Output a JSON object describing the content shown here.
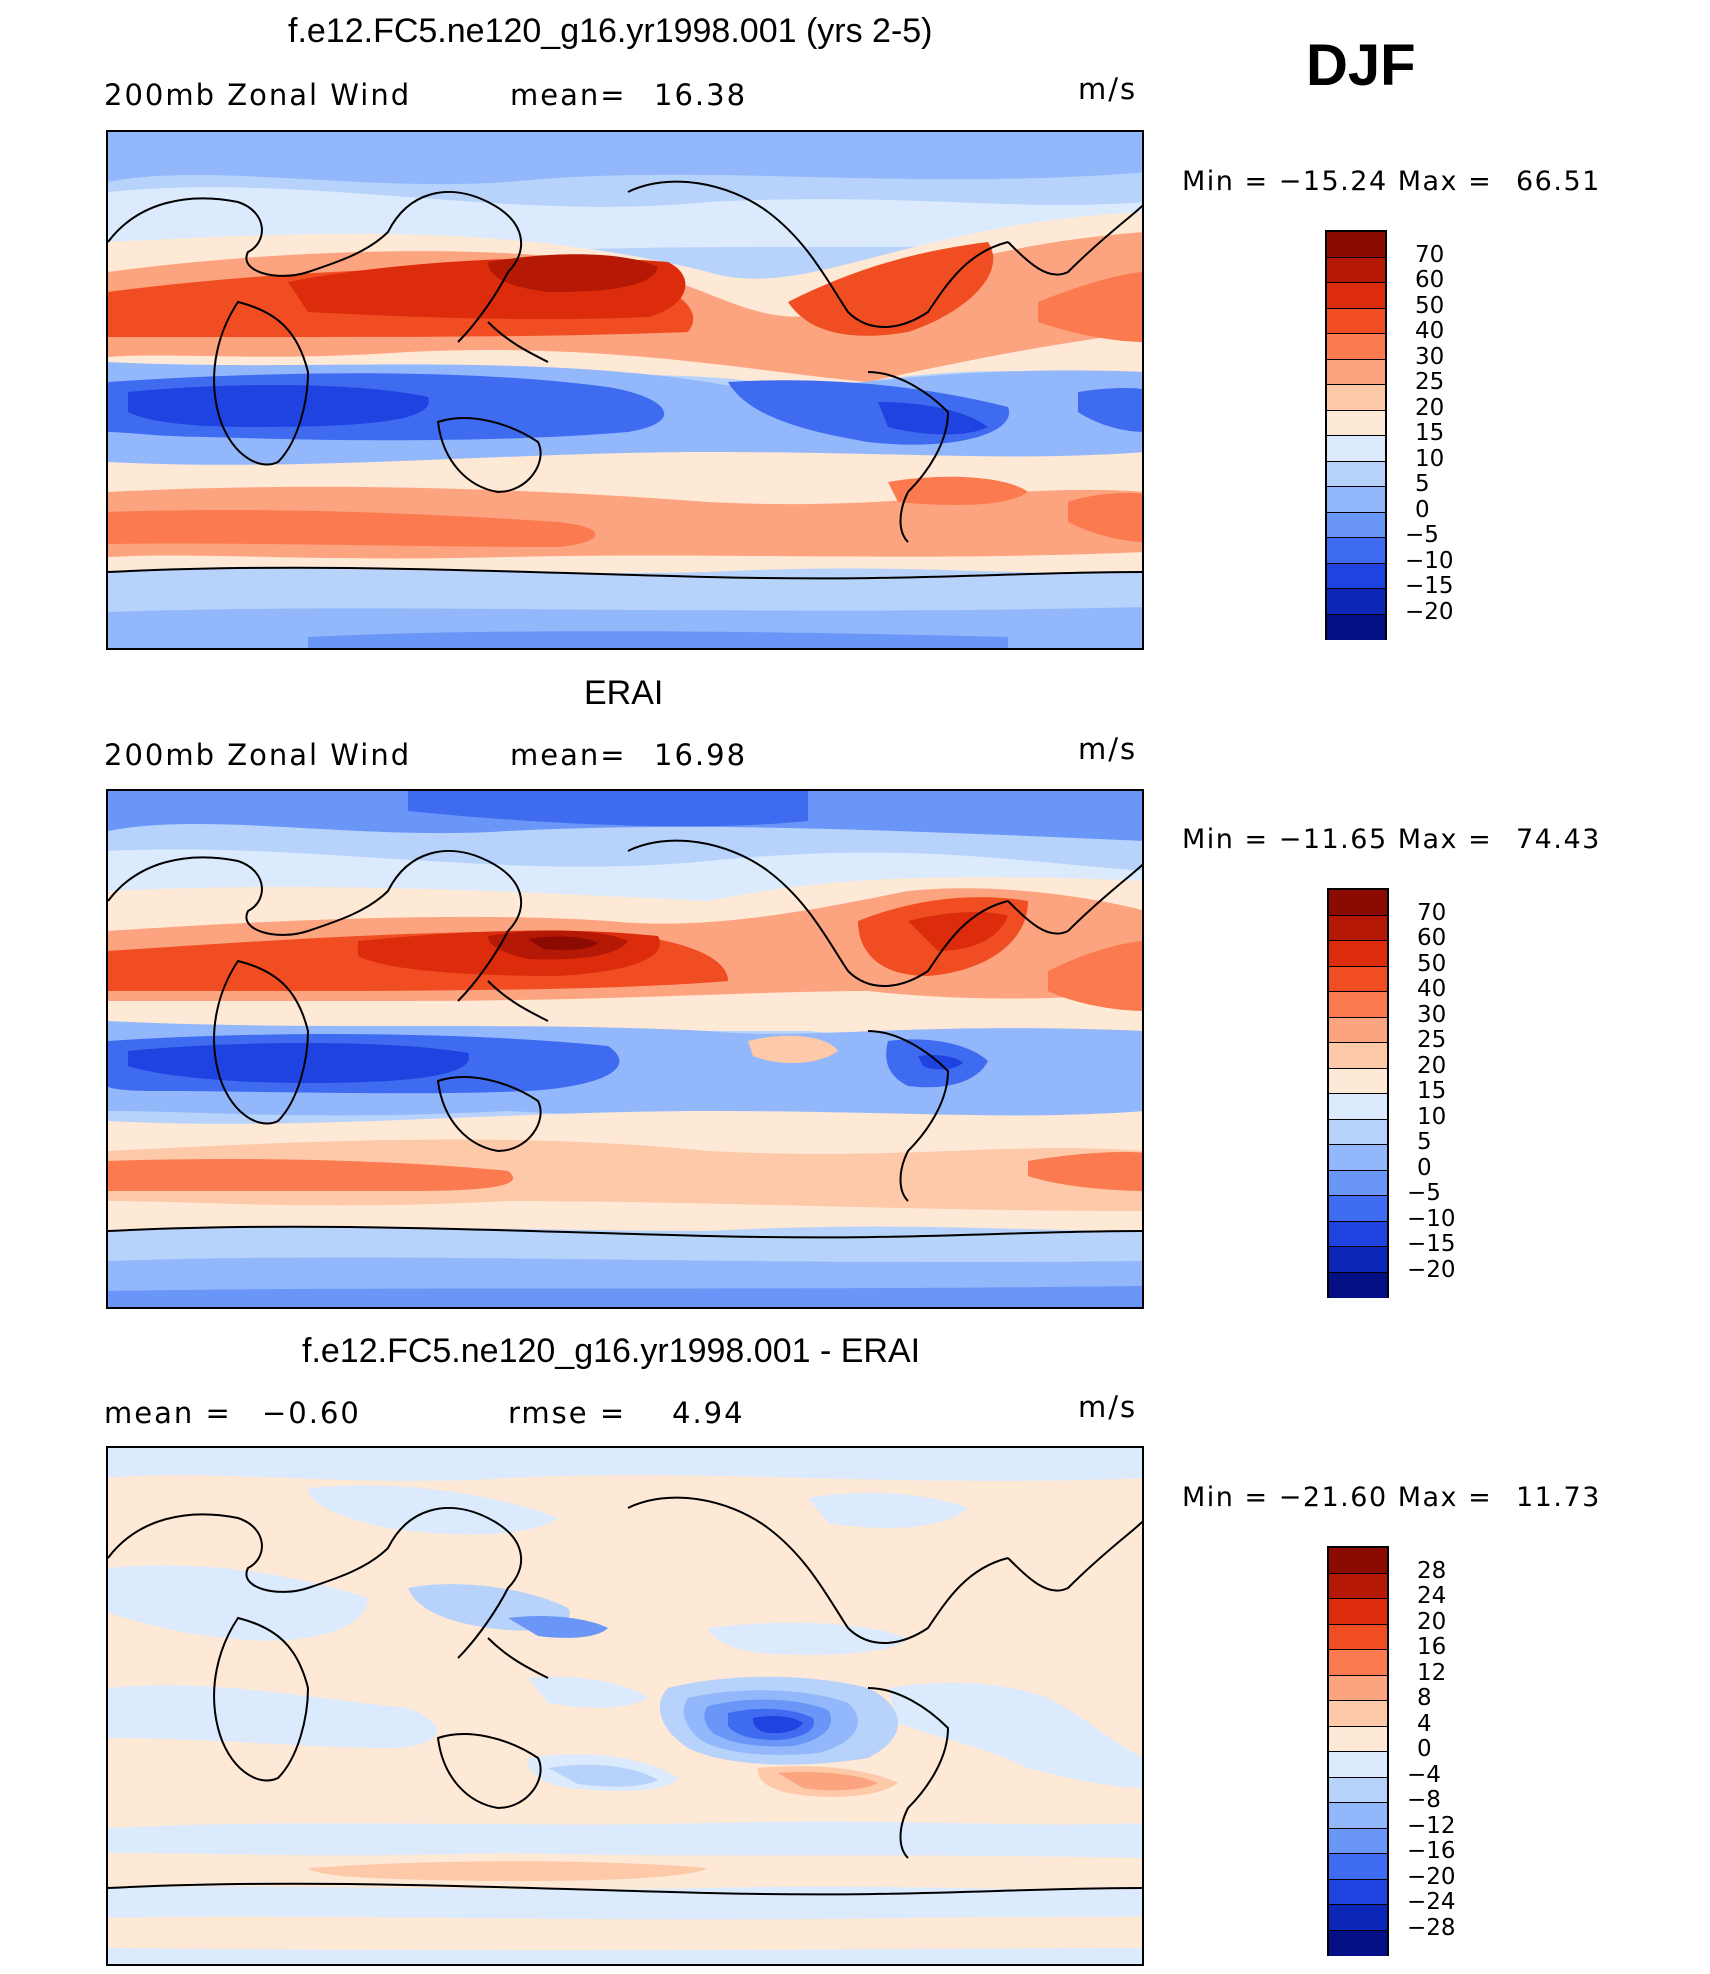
{
  "season": "DJF",
  "palette_warm": [
    "#fee8d6",
    "#fdc9a9",
    "#fca37f",
    "#fb7a4f",
    "#f04e22",
    "#dc2c0b",
    "#b51805",
    "#8b0a02"
  ],
  "palette_cool": [
    "#dbeafc",
    "#b7d2fb",
    "#93b7fb",
    "#6996f7",
    "#3f6bf0",
    "#1f43e0",
    "#0c27b8",
    "#040f86"
  ],
  "panels": [
    {
      "title": "f.e12.FC5.ne120_g16.yr1998.001 (yrs 2-5)",
      "left_label": "200mb  Zonal  Wind",
      "stat_label": "mean=",
      "stat_value": "16.38",
      "units": "m/s",
      "min_label": "Min  =  −15.24  Max  =",
      "max_value": "66.51",
      "colorbar_labels": [
        "70",
        "60",
        "50",
        "40",
        "30",
        "25",
        "20",
        "15",
        "10",
        "5",
        "0",
        "−5",
        "−10",
        "−15",
        "−20"
      ]
    },
    {
      "title": "ERAI",
      "left_label": "200mb  Zonal  Wind",
      "stat_label": "mean=",
      "stat_value": "16.98",
      "units": "m/s",
      "min_label": "Min  =  −11.65  Max  =",
      "max_value": "74.43",
      "colorbar_labels": [
        "70",
        "60",
        "50",
        "40",
        "30",
        "25",
        "20",
        "15",
        "10",
        "5",
        "0",
        "−5",
        "−10",
        "−15",
        "−20"
      ]
    },
    {
      "title": "f.e12.FC5.ne120_g16.yr1998.001 - ERAI",
      "left_label": "mean  =",
      "left_value": "−0.60",
      "stat_label": "rmse  =",
      "stat_value": "4.94",
      "units": "m/s",
      "min_label": "Min  =  −21.60  Max  =",
      "max_value": "11.73",
      "colorbar_labels": [
        "28",
        "24",
        "20",
        "16",
        "12",
        "8",
        "4",
        "0",
        "−4",
        "−8",
        "−12",
        "−16",
        "−20",
        "−24",
        "−28"
      ]
    }
  ]
}
